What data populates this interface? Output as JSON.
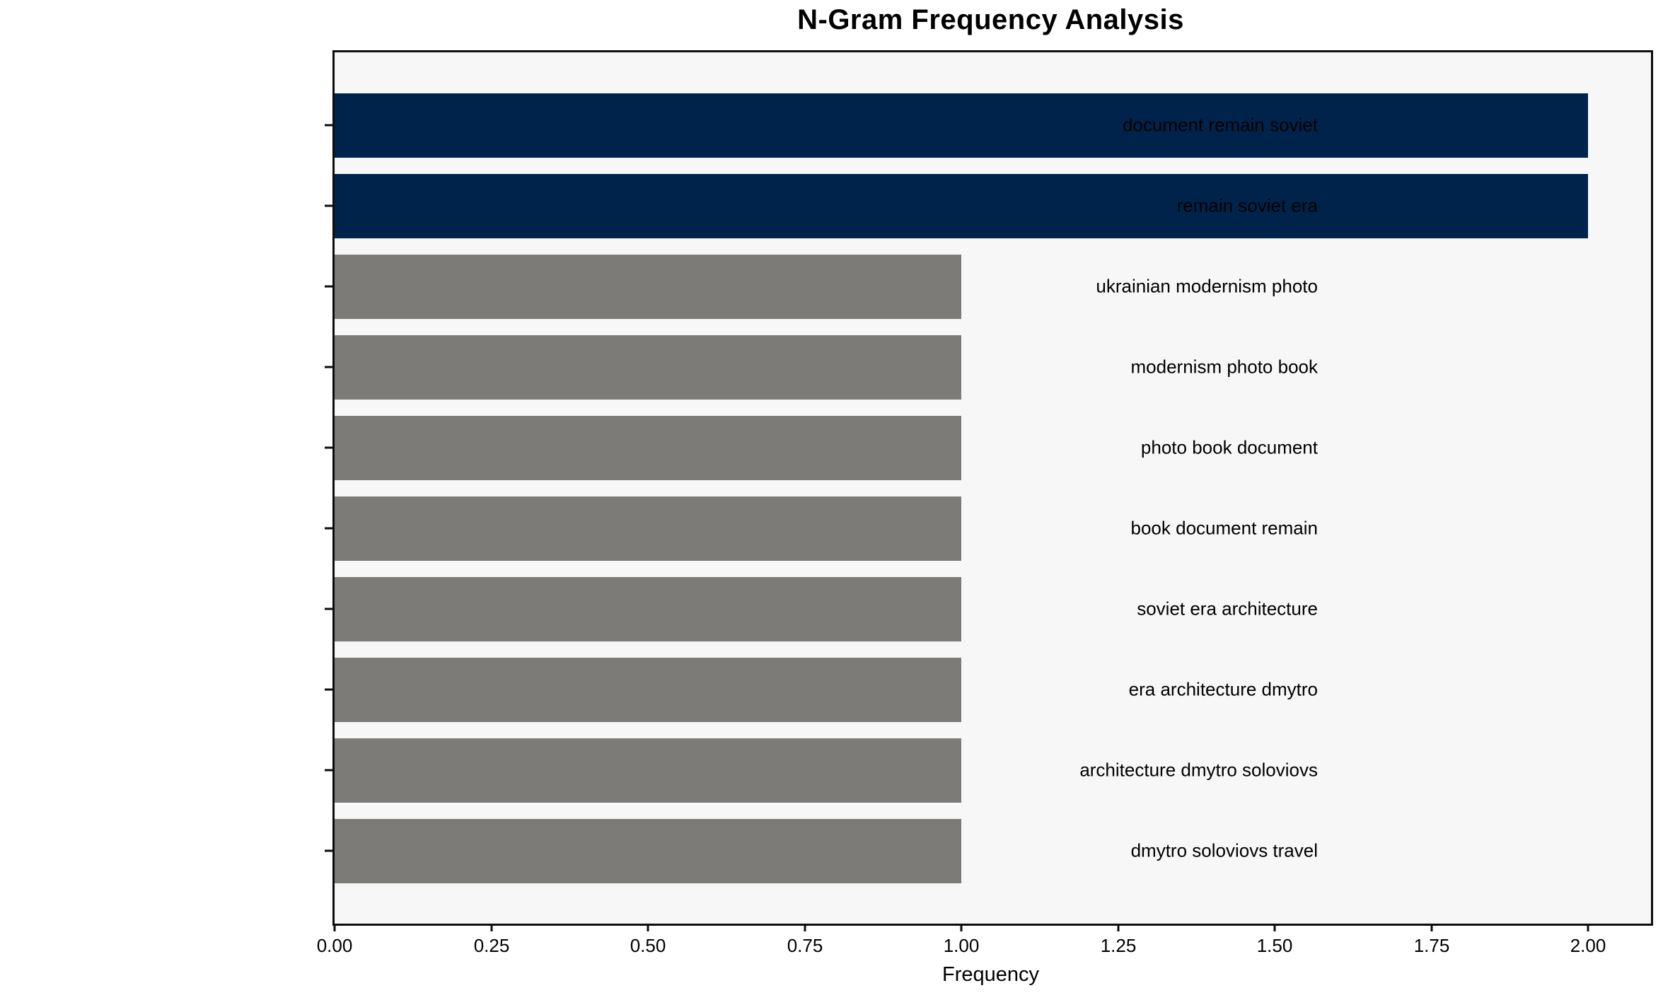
{
  "title": "N-Gram Frequency Analysis",
  "chart_data": {
    "type": "bar",
    "orientation": "horizontal",
    "title": "N-Gram Frequency Analysis",
    "xlabel": "Frequency",
    "ylabel": "",
    "categories": [
      "document remain soviet",
      "remain soviet era",
      "ukrainian modernism photo",
      "modernism photo book",
      "photo book document",
      "book document remain",
      "soviet era architecture",
      "era architecture dmytro",
      "architecture dmytro soloviovs",
      "dmytro soloviovs travel"
    ],
    "values": [
      2.0,
      2.0,
      1.0,
      1.0,
      1.0,
      1.0,
      1.0,
      1.0,
      1.0,
      1.0
    ],
    "bar_colors": [
      "#00234b",
      "#00234b",
      "#7c7b78",
      "#7c7b78",
      "#7c7b78",
      "#7c7b78",
      "#7c7b78",
      "#7c7b78",
      "#7c7b78",
      "#7c7b78"
    ],
    "xlim": [
      0,
      2.1
    ],
    "xticks": [
      {
        "value": 0.0,
        "label": "0.00"
      },
      {
        "value": 0.25,
        "label": "0.25"
      },
      {
        "value": 0.5,
        "label": "0.50"
      },
      {
        "value": 0.75,
        "label": "0.75"
      },
      {
        "value": 1.0,
        "label": "1.00"
      },
      {
        "value": 1.25,
        "label": "1.25"
      },
      {
        "value": 1.5,
        "label": "1.50"
      },
      {
        "value": 1.75,
        "label": "1.75"
      },
      {
        "value": 2.0,
        "label": "2.00"
      }
    ],
    "grid": false,
    "legend": null,
    "colors": {
      "highlight_bar": "#00234b",
      "default_bar": "#7c7b78",
      "plot_background": "#f7f7f7",
      "figure_background": "#ffffff",
      "axis_frame": "#0d0d0d",
      "text": "#000000"
    }
  }
}
